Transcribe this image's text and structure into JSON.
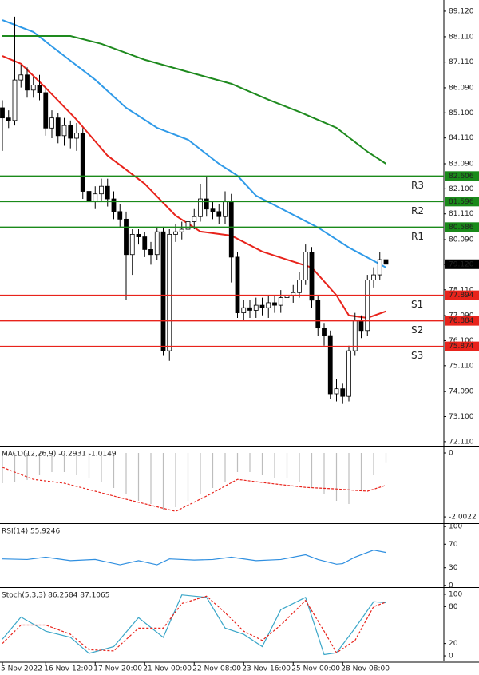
{
  "chart_data": [
    {
      "type": "candlestick",
      "categories": [
        "5 Nov 2022",
        null,
        null,
        null,
        null,
        null,
        null,
        "16 Nov 12:00",
        null,
        null,
        null,
        null,
        null,
        null,
        null,
        "17 Nov 20:00",
        null,
        null,
        null,
        null,
        null,
        null,
        null,
        "21 Nov 00:00",
        null,
        null,
        null,
        null,
        null,
        null,
        null,
        "22 Nov 08:00",
        null,
        null,
        null,
        null,
        null,
        null,
        null,
        "23 Nov 16:00",
        null,
        null,
        null,
        null,
        null,
        null,
        null,
        "25 Nov 00:00",
        null,
        null,
        null,
        null,
        null,
        null,
        null,
        "28 Nov 08:00",
        null,
        null,
        null,
        null,
        null,
        null,
        null
      ],
      "open": [
        85.3,
        84.9,
        84.8,
        86.4,
        86.6,
        86.0,
        86.2,
        85.9,
        84.5,
        84.9,
        84.2,
        84.6,
        84.1,
        84.3,
        82.0,
        81.6,
        81.9,
        82.2,
        81.7,
        81.2,
        80.9,
        79.5,
        80.3,
        80.2,
        79.7,
        79.5,
        80.4,
        75.7,
        80.3,
        80.4,
        80.5,
        80.8,
        81.0,
        81.7,
        81.3,
        81.2,
        81.0,
        81.6,
        79.4,
        77.2,
        77.4,
        77.3,
        77.5,
        77.4,
        77.6,
        77.5,
        77.8,
        77.9,
        78.0,
        78.5,
        79.6,
        77.7,
        76.6,
        76.3,
        74.0,
        74.2,
        73.9,
        75.7,
        76.9,
        76.5,
        78.5,
        78.7,
        79.3
      ],
      "high": [
        85.6,
        85.2,
        88.9,
        87.0,
        86.9,
        86.5,
        86.6,
        86.1,
        85.2,
        85.1,
        84.9,
        84.8,
        84.7,
        84.5,
        82.3,
        82.2,
        82.5,
        82.5,
        82.0,
        81.5,
        81.2,
        80.5,
        80.5,
        80.4,
        80.0,
        80.6,
        80.6,
        80.5,
        80.7,
        80.8,
        81.1,
        81.3,
        82.3,
        82.6,
        81.6,
        81.5,
        82.0,
        81.9,
        79.6,
        77.7,
        77.7,
        77.8,
        77.8,
        77.9,
        77.9,
        78.1,
        78.2,
        78.3,
        78.8,
        79.9,
        79.8,
        77.9,
        76.8,
        76.5,
        74.6,
        74.4,
        75.9,
        77.2,
        77.1,
        78.7,
        79.0,
        79.6,
        79.4
      ],
      "low": [
        83.6,
        84.5,
        84.6,
        86.1,
        85.7,
        85.7,
        85.6,
        84.2,
        84.1,
        83.9,
        83.8,
        83.7,
        83.6,
        81.7,
        81.3,
        81.3,
        81.6,
        81.4,
        80.9,
        80.6,
        77.7,
        78.7,
        79.9,
        79.4,
        79.1,
        79.3,
        75.5,
        75.3,
        80.0,
        80.1,
        80.2,
        80.5,
        80.8,
        81.0,
        80.9,
        80.7,
        80.7,
        78.4,
        77.0,
        76.9,
        77.0,
        77.0,
        77.1,
        77.0,
        77.2,
        77.2,
        77.5,
        77.6,
        77.8,
        78.3,
        77.4,
        76.3,
        75.9,
        73.8,
        73.7,
        73.6,
        73.7,
        75.5,
        76.2,
        76.3,
        78.2,
        78.5,
        79.0
      ],
      "close": [
        84.9,
        84.8,
        86.4,
        86.6,
        86.0,
        86.2,
        85.9,
        84.5,
        84.9,
        84.2,
        84.6,
        84.1,
        84.3,
        82.0,
        81.6,
        81.9,
        82.2,
        81.7,
        81.2,
        80.9,
        79.5,
        80.3,
        80.2,
        79.7,
        79.5,
        80.4,
        75.7,
        80.3,
        80.4,
        80.5,
        80.8,
        81.0,
        81.7,
        81.3,
        81.2,
        81.0,
        81.6,
        79.4,
        77.2,
        77.4,
        77.3,
        77.5,
        77.4,
        77.6,
        77.5,
        77.8,
        77.9,
        78.0,
        78.5,
        79.6,
        77.7,
        76.6,
        76.3,
        74.0,
        74.2,
        73.9,
        75.7,
        76.9,
        76.5,
        78.5,
        78.7,
        79.3,
        79.12
      ],
      "up_color": "#ffffff",
      "down_color": "#000000",
      "lines": [
        {
          "color": "#2f9ae8",
          "x": [
            0,
            5,
            10,
            15,
            20,
            25,
            30,
            35,
            38,
            41,
            46,
            51,
            56,
            62
          ],
          "values": [
            88.77,
            88.3,
            87.35,
            86.41,
            85.3,
            84.51,
            84.04,
            83.09,
            82.62,
            81.83,
            81.2,
            80.57,
            79.78,
            78.99
          ]
        },
        {
          "color": "#1e8a1e",
          "x": [
            0,
            11,
            16,
            23,
            30,
            37,
            43,
            48,
            54,
            59,
            62
          ],
          "values": [
            88.14,
            88.14,
            87.83,
            87.2,
            86.72,
            86.25,
            85.62,
            85.14,
            84.51,
            83.57,
            83.09
          ]
        },
        {
          "color": "#e8231b",
          "x": [
            0,
            3,
            7,
            12,
            17,
            23,
            28,
            32,
            37,
            42,
            46,
            50,
            54,
            56,
            59,
            62
          ],
          "values": [
            87.35,
            87.04,
            86.09,
            84.83,
            83.41,
            82.3,
            81.04,
            80.41,
            80.25,
            79.62,
            79.3,
            78.99,
            77.89,
            77.1,
            77.0,
            77.26
          ]
        }
      ],
      "levels": [
        {
          "label": "R3",
          "value": 82.606,
          "color": "#1a8a1a"
        },
        {
          "label": "R2",
          "value": 81.596,
          "color": "#1a8a1a"
        },
        {
          "label": "R1",
          "value": 80.586,
          "color": "#1a8a1a"
        },
        {
          "label": "S1",
          "value": 77.894,
          "color": "#e8231b"
        },
        {
          "label": "S2",
          "value": 76.884,
          "color": "#e8231b"
        },
        {
          "label": "S3",
          "value": 75.874,
          "color": "#e8231b"
        }
      ],
      "last": {
        "value": 79.12,
        "label": "79.120"
      },
      "ylim": [
        71.98,
        89.56
      ],
      "yticks": [
        {
          "value": 89.12,
          "label": "89.120"
        },
        {
          "value": 88.11,
          "label": "88.110"
        },
        {
          "value": 87.11,
          "label": "87.110"
        },
        {
          "value": 86.09,
          "label": "86.090"
        },
        {
          "value": 85.1,
          "label": "85.100"
        },
        {
          "value": 84.11,
          "label": "84.110"
        },
        {
          "value": 83.09,
          "label": "83.090"
        },
        {
          "value": 82.1,
          "label": "82.100"
        },
        {
          "value": 81.11,
          "label": "81.110"
        },
        {
          "value": 80.09,
          "label": "80.090"
        },
        {
          "value": 79.11,
          "label": "79.110"
        },
        {
          "value": 78.11,
          "label": "78.110"
        },
        {
          "value": 77.09,
          "label": "77.090"
        },
        {
          "value": 76.1,
          "label": "76.100"
        },
        {
          "value": 75.11,
          "label": "75.110"
        },
        {
          "value": 74.09,
          "label": "74.090"
        },
        {
          "value": 73.1,
          "label": "73.100"
        },
        {
          "value": 72.11,
          "label": "72.110"
        }
      ]
    },
    {
      "type": "indicator",
      "title": "MACD(12,26,9) -0.2931 -1.0149",
      "ylim": [
        -2.2,
        0.175
      ],
      "yticks": [
        0,
        -2.0022
      ],
      "series": [
        {
          "kind": "bar",
          "color": "#bdbdbd",
          "x": [
            0,
            2,
            4,
            6,
            8,
            10,
            12,
            14,
            16,
            18,
            20,
            22,
            24,
            26,
            28,
            30,
            32,
            34,
            36,
            38,
            40,
            42,
            44,
            46,
            48,
            50,
            52,
            54,
            56,
            58,
            60,
            62
          ],
          "values": [
            -0.95,
            -0.9,
            -0.85,
            -0.7,
            -0.6,
            -0.6,
            -0.7,
            -0.8,
            -0.9,
            -1.1,
            -1.3,
            -1.5,
            -1.6,
            -1.8,
            -1.7,
            -1.5,
            -1.3,
            -1.1,
            -0.9,
            -0.6,
            -0.6,
            -0.7,
            -0.8,
            -0.8,
            -0.9,
            -1.1,
            -1.3,
            -1.5,
            -1.6,
            -1.2,
            -0.7,
            -0.2931
          ]
        },
        {
          "kind": "line",
          "color": "#e8231b",
          "dash": true,
          "x": [
            0,
            5,
            10,
            15,
            20,
            28,
            33,
            38,
            43,
            49,
            54,
            59,
            62
          ],
          "values": [
            -0.45,
            -0.83,
            -0.95,
            -1.2,
            -1.45,
            -1.83,
            -1.35,
            -0.83,
            -0.95,
            -1.08,
            -1.13,
            -1.2,
            -1.0149
          ]
        }
      ]
    },
    {
      "type": "indicator",
      "title": "RSI(14) 55.9246",
      "ylim": [
        -3,
        103
      ],
      "yticks": [
        100,
        70,
        30,
        0
      ],
      "series": [
        {
          "kind": "line",
          "color": "#2f8fe0",
          "x": [
            0,
            4,
            7,
            11,
            15,
            19,
            22,
            25,
            27,
            31,
            34,
            37,
            41,
            45,
            49,
            51,
            54,
            55,
            57,
            60,
            62
          ],
          "values": [
            45,
            44,
            48,
            42,
            44,
            35,
            42,
            35,
            45,
            43,
            44,
            48,
            42,
            44,
            52,
            44,
            36,
            37,
            48,
            60,
            55.9246
          ]
        }
      ]
    },
    {
      "type": "indicator",
      "title": "Stoch(5,3,3) 86.2584 87.1065",
      "ylim": [
        -9,
        109
      ],
      "yticks": [
        100,
        80,
        20,
        0
      ],
      "series": [
        {
          "kind": "line",
          "color": "#3aa6c8",
          "x": [
            0,
            3,
            7,
            11,
            14,
            18,
            22,
            26,
            29,
            33,
            36,
            39,
            42,
            45,
            49,
            52,
            54,
            57,
            60,
            62
          ],
          "values": [
            27,
            63,
            40,
            30,
            4,
            15,
            62,
            30,
            99,
            95,
            45,
            35,
            15,
            75,
            95,
            2,
            5,
            45,
            88,
            86.2584
          ]
        },
        {
          "kind": "line",
          "color": "#e8231b",
          "dash": true,
          "x": [
            0,
            3,
            7,
            11,
            14,
            18,
            22,
            26,
            29,
            33,
            36,
            39,
            42,
            45,
            49,
            52,
            54,
            57,
            60,
            62
          ],
          "values": [
            20,
            50,
            50,
            35,
            10,
            8,
            45,
            45,
            85,
            97,
            70,
            40,
            25,
            50,
            90,
            40,
            5,
            25,
            80,
            87.1065
          ]
        }
      ]
    }
  ]
}
